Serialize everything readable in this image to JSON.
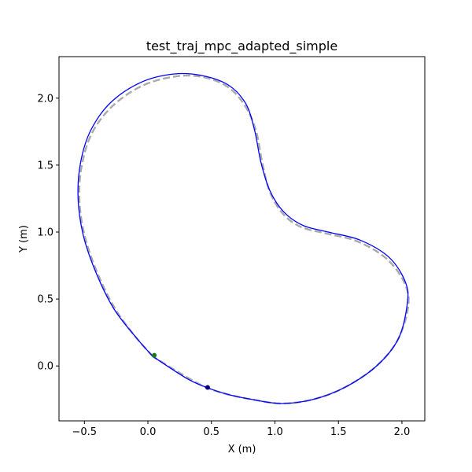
{
  "chart_data": {
    "type": "line",
    "title": "test_traj_mpc_adapted_simple",
    "xlabel": "X (m)",
    "ylabel": "Y (m)",
    "xlim": [
      -0.7,
      2.18
    ],
    "ylim": [
      -0.41,
      2.31
    ],
    "xticks": [
      -0.5,
      0.0,
      0.5,
      1.0,
      1.5,
      2.0
    ],
    "xtick_labels": [
      "−0.5",
      "0.0",
      "0.5",
      "1.0",
      "1.5",
      "2.0"
    ],
    "yticks": [
      0.0,
      0.5,
      1.0,
      1.5,
      2.0
    ],
    "ytick_labels": [
      "0.0",
      "0.5",
      "1.0",
      "1.5",
      "2.0"
    ],
    "grid": false,
    "series": [
      {
        "style": "dashed",
        "color": "#aaaaaa",
        "x": [
          0.04,
          -0.1,
          -0.26,
          -0.4,
          -0.5,
          -0.54,
          -0.52,
          -0.44,
          -0.28,
          -0.05,
          0.2,
          0.42,
          0.62,
          0.76,
          0.85,
          0.9,
          0.96,
          1.06,
          1.2,
          1.4,
          1.65,
          1.88,
          2.02,
          2.05,
          1.97,
          1.8,
          1.55,
          1.3,
          1.05,
          0.82,
          0.62,
          0.46,
          0.3,
          0.04
        ],
        "y": [
          0.07,
          0.22,
          0.43,
          0.7,
          0.98,
          1.25,
          1.5,
          1.74,
          1.94,
          2.09,
          2.16,
          2.16,
          2.09,
          1.95,
          1.76,
          1.52,
          1.3,
          1.14,
          1.04,
          0.99,
          0.93,
          0.8,
          0.62,
          0.45,
          0.2,
          0.0,
          -0.16,
          -0.25,
          -0.28,
          -0.25,
          -0.21,
          -0.16,
          -0.08,
          0.07
        ]
      },
      {
        "style": "solid",
        "color": "#0000ff",
        "x": [
          0.04,
          -0.1,
          -0.27,
          -0.41,
          -0.51,
          -0.55,
          -0.53,
          -0.45,
          -0.29,
          -0.05,
          0.2,
          0.42,
          0.63,
          0.77,
          0.84,
          0.89,
          0.96,
          1.07,
          1.22,
          1.42,
          1.67,
          1.9,
          2.03,
          2.04,
          1.97,
          1.8,
          1.55,
          1.3,
          1.05,
          0.82,
          0.62,
          0.46,
          0.3,
          0.04
        ],
        "y": [
          0.07,
          0.22,
          0.43,
          0.7,
          0.98,
          1.26,
          1.52,
          1.76,
          1.97,
          2.12,
          2.18,
          2.17,
          2.1,
          1.96,
          1.76,
          1.52,
          1.31,
          1.15,
          1.05,
          1.0,
          0.94,
          0.81,
          0.62,
          0.45,
          0.2,
          0.0,
          -0.16,
          -0.25,
          -0.28,
          -0.25,
          -0.21,
          -0.16,
          -0.09,
          0.07
        ]
      }
    ],
    "markers": [
      {
        "x": 0.05,
        "y": 0.08,
        "color": "#1a7a1a"
      },
      {
        "x": 0.47,
        "y": -0.16,
        "color": "#000080"
      }
    ]
  }
}
